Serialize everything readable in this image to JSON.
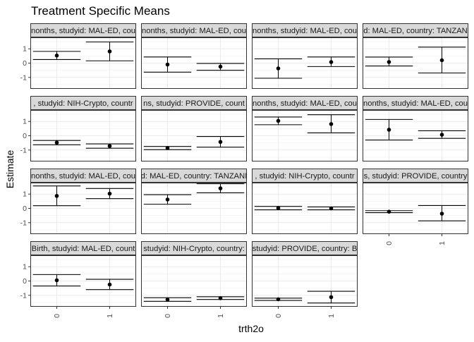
{
  "chart_data": {
    "type": "scatter",
    "style": "faceted point estimates with error bars (confidence intervals)",
    "title": "Treatment Specific Means",
    "xlabel": "trth2o",
    "ylabel": "Estimate",
    "x_categories": [
      "0",
      "1"
    ],
    "y_ticks": [
      -1,
      0,
      1
    ],
    "ylim": [
      -1.8,
      1.8
    ],
    "grid": true,
    "facets": [
      {
        "strip": "nonths, studyid: MAL-ED, cou",
        "points": [
          {
            "x": "0",
            "estimate": 0.53,
            "lower": 0.25,
            "upper": 0.82
          },
          {
            "x": "1",
            "estimate": 0.82,
            "lower": 0.16,
            "upper": 1.48
          }
        ]
      },
      {
        "strip": "nonths, studyid: MAL-ED, cou",
        "points": [
          {
            "x": "0",
            "estimate": -0.1,
            "lower": -0.63,
            "upper": 0.43
          },
          {
            "x": "1",
            "estimate": -0.25,
            "lower": -0.5,
            "upper": -0.02
          }
        ]
      },
      {
        "strip": "nonths, studyid: MAL-ED, cou",
        "points": [
          {
            "x": "0",
            "estimate": -0.37,
            "lower": -1.06,
            "upper": 0.3
          },
          {
            "x": "1",
            "estimate": 0.07,
            "lower": -0.24,
            "upper": 0.43
          }
        ]
      },
      {
        "strip": "d: MAL-ED, country: TANZAN",
        "points": [
          {
            "x": "0",
            "estimate": 0.08,
            "lower": -0.2,
            "upper": 0.42
          },
          {
            "x": "1",
            "estimate": 0.2,
            "lower": -0.69,
            "upper": 1.12
          }
        ]
      },
      {
        "strip": ", studyid: NIH-Crypto, countr",
        "points": [
          {
            "x": "0",
            "estimate": -0.48,
            "lower": -0.63,
            "upper": -0.33
          },
          {
            "x": "1",
            "estimate": -0.72,
            "lower": -0.87,
            "upper": -0.57
          }
        ]
      },
      {
        "strip": "ns, studyid: PROVIDE, count",
        "points": [
          {
            "x": "0",
            "estimate": -0.86,
            "lower": -0.97,
            "upper": -0.75
          },
          {
            "x": "1",
            "estimate": -0.43,
            "lower": -0.8,
            "upper": -0.05
          }
        ]
      },
      {
        "strip": "nonths, studyid: MAL-ED, cou",
        "points": [
          {
            "x": "0",
            "estimate": 1.04,
            "lower": 0.77,
            "upper": 1.31
          },
          {
            "x": "1",
            "estimate": 0.82,
            "lower": 0.2,
            "upper": 1.47
          }
        ]
      },
      {
        "strip": "nonths, studyid: MAL-ED, cou",
        "points": [
          {
            "x": "0",
            "estimate": 0.42,
            "lower": -0.3,
            "upper": 1.14
          },
          {
            "x": "1",
            "estimate": 0.07,
            "lower": -0.18,
            "upper": 0.35
          }
        ]
      },
      {
        "strip": "nonths, studyid: MAL-ED, cou",
        "points": [
          {
            "x": "0",
            "estimate": 0.87,
            "lower": 0.19,
            "upper": 1.57
          },
          {
            "x": "1",
            "estimate": 1.03,
            "lower": 0.68,
            "upper": 1.39
          }
        ]
      },
      {
        "strip": "d: MAL-ED, country: TANZANI",
        "points": [
          {
            "x": "0",
            "estimate": 0.62,
            "lower": 0.29,
            "upper": 0.96
          },
          {
            "x": "1",
            "estimate": 1.4,
            "lower": 1.09,
            "upper": 1.72
          }
        ]
      },
      {
        "strip": ", studyid: NIH-Crypto, countr",
        "points": [
          {
            "x": "0",
            "estimate": 0.02,
            "lower": -0.1,
            "upper": 0.14
          },
          {
            "x": "1",
            "estimate": 0.0,
            "lower": -0.1,
            "upper": 0.1
          }
        ]
      },
      {
        "strip": "s, studyid: PROVIDE, country",
        "points": [
          {
            "x": "0",
            "estimate": -0.23,
            "lower": -0.3,
            "upper": -0.16
          },
          {
            "x": "1",
            "estimate": -0.37,
            "lower": -0.87,
            "upper": 0.2
          }
        ]
      },
      {
        "strip": "Birth, studyid: MAL-ED, count",
        "points": [
          {
            "x": "0",
            "estimate": 0.05,
            "lower": -0.35,
            "upper": 0.45
          },
          {
            "x": "1",
            "estimate": -0.25,
            "lower": -0.6,
            "upper": 0.12
          }
        ]
      },
      {
        "strip": "studyid: NIH-Crypto, country:",
        "points": [
          {
            "x": "0",
            "estimate": -1.3,
            "lower": -1.42,
            "upper": -1.17
          },
          {
            "x": "1",
            "estimate": -1.2,
            "lower": -1.29,
            "upper": -1.1
          }
        ]
      },
      {
        "strip": "studyid: PROVIDE, country: B",
        "points": [
          {
            "x": "0",
            "estimate": -1.28,
            "lower": -1.36,
            "upper": -1.2
          },
          {
            "x": "1",
            "estimate": -1.13,
            "lower": -1.54,
            "upper": -0.72
          }
        ]
      }
    ]
  }
}
